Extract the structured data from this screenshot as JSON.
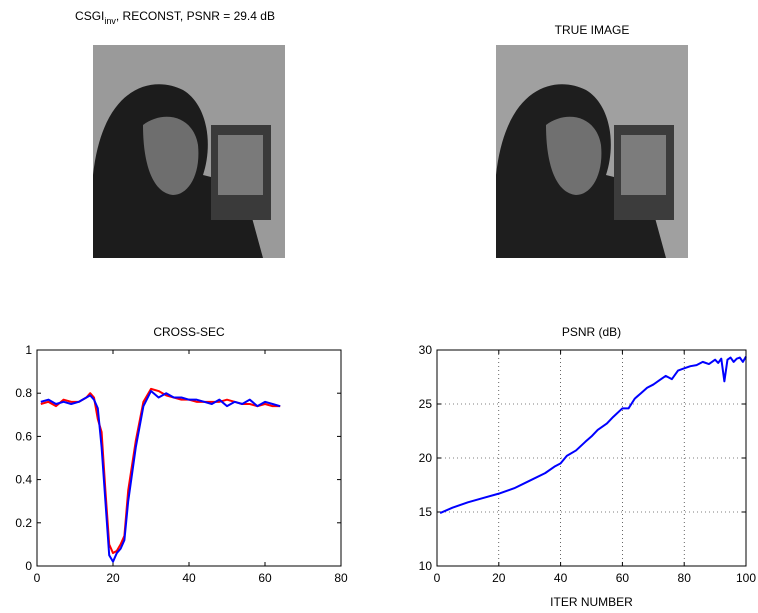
{
  "chart_data": [
    {
      "type": "image",
      "title": [
        "CSGI",
        "inv",
        ", RECONST, PSNR = 29.4 dB"
      ]
    },
    {
      "type": "image",
      "title": "TRUE IMAGE"
    },
    {
      "type": "line",
      "title": "CROSS-SEC",
      "x": [
        1,
        3,
        5,
        7,
        9,
        11,
        13,
        14,
        15,
        16,
        17,
        18,
        19,
        20,
        21,
        22,
        23,
        24,
        26,
        28,
        30,
        32,
        34,
        36,
        38,
        40,
        42,
        44,
        46,
        48,
        50,
        52,
        54,
        56,
        58,
        60,
        62,
        64
      ],
      "series": [
        {
          "color": "#ff0000",
          "values": [
            0.75,
            0.76,
            0.74,
            0.77,
            0.76,
            0.76,
            0.78,
            0.8,
            0.78,
            0.68,
            0.62,
            0.35,
            0.1,
            0.06,
            0.07,
            0.1,
            0.14,
            0.35,
            0.58,
            0.76,
            0.82,
            0.81,
            0.79,
            0.78,
            0.77,
            0.77,
            0.76,
            0.76,
            0.76,
            0.76,
            0.77,
            0.76,
            0.75,
            0.75,
            0.74,
            0.75,
            0.74,
            0.74
          ]
        },
        {
          "color": "#0000ff",
          "values": [
            0.76,
            0.77,
            0.75,
            0.76,
            0.75,
            0.76,
            0.78,
            0.79,
            0.77,
            0.73,
            0.55,
            0.3,
            0.05,
            0.02,
            0.06,
            0.08,
            0.12,
            0.3,
            0.55,
            0.74,
            0.81,
            0.78,
            0.8,
            0.78,
            0.78,
            0.77,
            0.77,
            0.76,
            0.75,
            0.77,
            0.74,
            0.76,
            0.75,
            0.77,
            0.74,
            0.76,
            0.75,
            0.74
          ]
        }
      ],
      "xlim": [
        0,
        80
      ],
      "ylim": [
        0,
        1
      ],
      "xticks": [
        0,
        20,
        40,
        60,
        80
      ],
      "yticks": [
        0,
        0.2,
        0.4,
        0.6,
        0.8,
        1
      ],
      "grid": false
    },
    {
      "type": "line",
      "title": "PSNR (dB)",
      "xlabel": "ITER NUMBER",
      "x": [
        1,
        5,
        10,
        15,
        20,
        25,
        30,
        35,
        38,
        40,
        42,
        45,
        48,
        50,
        52,
        55,
        57,
        60,
        62,
        64,
        66,
        68,
        70,
        72,
        74,
        76,
        78,
        80,
        82,
        84,
        86,
        88,
        90,
        91,
        92,
        93,
        94,
        95,
        96,
        97,
        98,
        99,
        100
      ],
      "series": [
        {
          "color": "#0000ff",
          "values": [
            14.9,
            15.4,
            15.9,
            16.3,
            16.7,
            17.2,
            17.9,
            18.6,
            19.2,
            19.5,
            20.2,
            20.7,
            21.5,
            22.0,
            22.6,
            23.2,
            23.8,
            24.6,
            24.6,
            25.5,
            26.0,
            26.5,
            26.8,
            27.2,
            27.6,
            27.3,
            28.1,
            28.3,
            28.5,
            28.6,
            28.9,
            28.7,
            29.1,
            28.8,
            29.2,
            27.1,
            29.1,
            29.3,
            28.9,
            29.2,
            29.3,
            28.9,
            29.4
          ]
        }
      ],
      "xlim": [
        0,
        100
      ],
      "ylim": [
        10,
        30
      ],
      "xticks": [
        0,
        20,
        40,
        60,
        80,
        100
      ],
      "yticks": [
        10,
        15,
        20,
        25,
        30
      ],
      "grid": true
    }
  ]
}
